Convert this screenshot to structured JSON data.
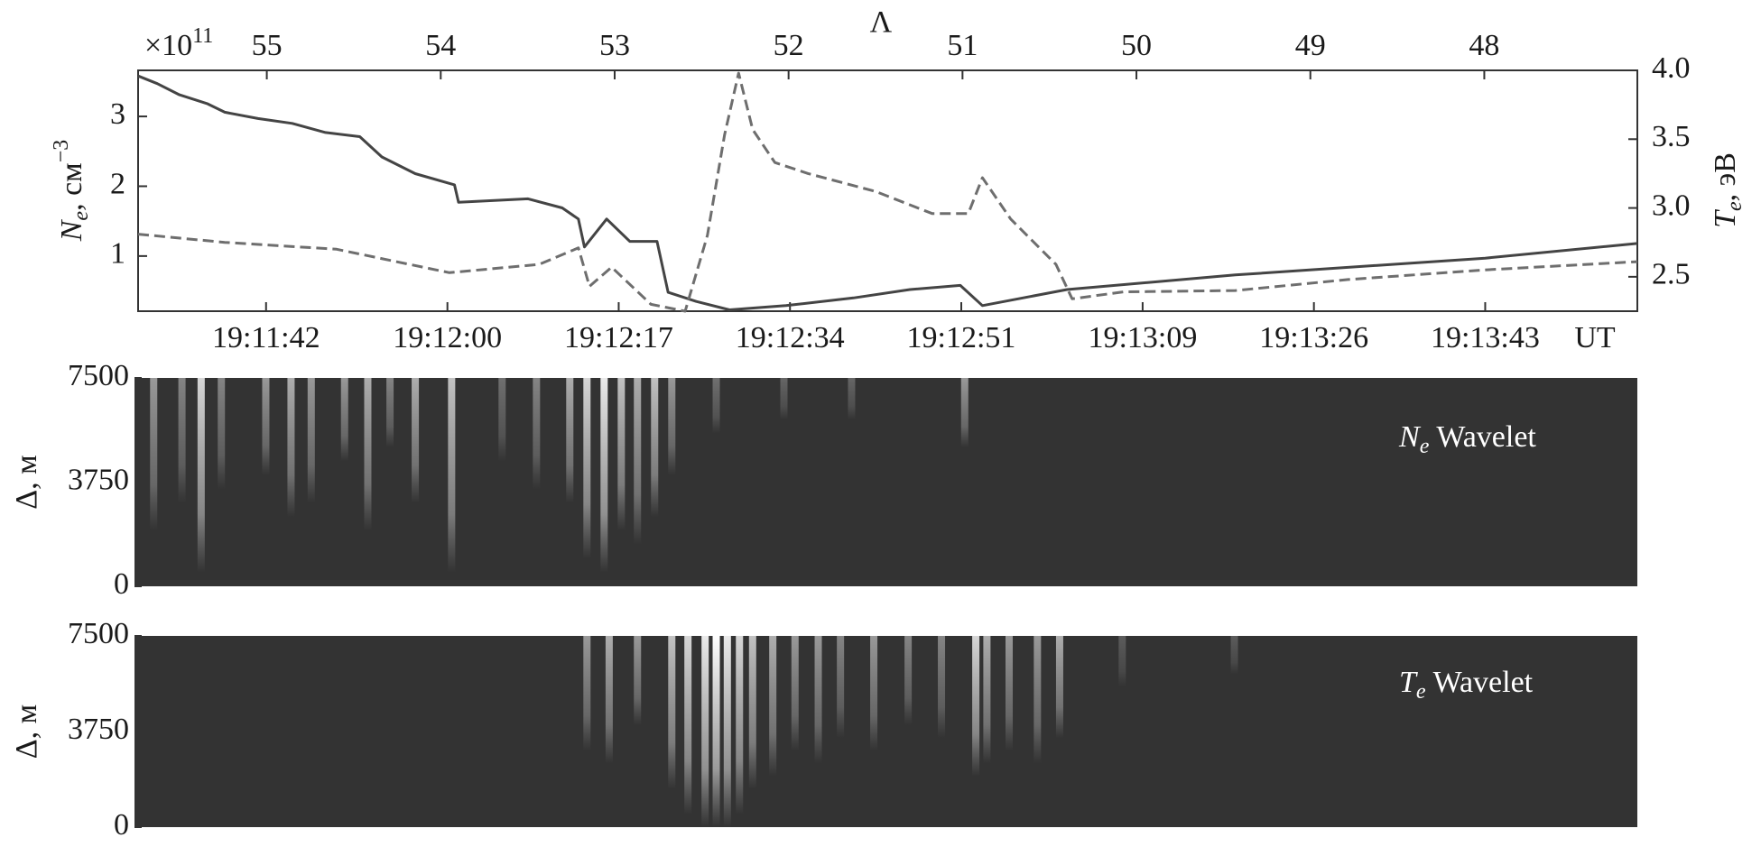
{
  "chart_data": [
    {
      "type": "line",
      "x_label": "UT",
      "x2_label": "Λ",
      "y_multiplier": {
        "base": "×10",
        "exponent": "11"
      },
      "y_label": {
        "symbol": "N",
        "sub": "e",
        "unit": ", см",
        "sup": "−3"
      },
      "y2_label": {
        "symbol": "T",
        "sub": "e",
        "unit": ", эВ"
      },
      "xlim": [
        68489.3,
        68638.1
      ],
      "xticks": [
        {
          "value": 68502,
          "label": "19:11:42"
        },
        {
          "value": 68520,
          "label": "19:12:00"
        },
        {
          "value": 68537,
          "label": "19:12:17"
        },
        {
          "value": 68554,
          "label": "19:12:34"
        },
        {
          "value": 68571,
          "label": "19:12:51"
        },
        {
          "value": 68589,
          "label": "19:13:09"
        },
        {
          "value": 68606,
          "label": "19:13:26"
        },
        {
          "value": 68623,
          "label": "19:13:43"
        }
      ],
      "x2lim": [
        55.74,
        47.12
      ],
      "x2ticks": [
        55,
        54,
        53,
        52,
        51,
        50,
        49,
        48
      ],
      "ylim": [
        0.21,
        3.66
      ],
      "yticks": [
        1,
        2,
        3
      ],
      "y2lim": [
        2.25,
        4.0
      ],
      "y2ticks": [
        2.5,
        {
          "value": 3,
          "label": "3.0"
        },
        3.5,
        {
          "value": 4,
          "label": "4.0"
        }
      ],
      "series": [
        {
          "color": "#444444",
          "style": "solid",
          "x": [
            68489.3,
            68491.2,
            68493.4,
            68496.2,
            68497.9,
            68501.2,
            68504.6,
            68507.9,
            68511.3,
            68513.5,
            68516.8,
            68520.7,
            68521.1,
            68528.0,
            68531.4,
            68533.0,
            68533.6,
            68535.8,
            68538.1,
            68540.8,
            68541.9,
            68544.7,
            68548.0,
            68553.6,
            68560.3,
            68565.9,
            68570.9,
            68573.1,
            68581.5,
            68598.2,
            68623.0,
            68638.1
          ],
          "values": [
            3.58,
            3.47,
            3.31,
            3.18,
            3.06,
            2.97,
            2.9,
            2.77,
            2.71,
            2.42,
            2.18,
            2.02,
            1.77,
            1.82,
            1.69,
            1.53,
            1.13,
            1.53,
            1.21,
            1.21,
            0.48,
            0.35,
            0.23,
            0.29,
            0.4,
            0.52,
            0.58,
            0.29,
            0.52,
            0.73,
            0.97,
            1.18
          ]
        },
        {
          "color": "#6e6e6e",
          "style": "dashed",
          "axis": "y2",
          "x": [
            68489.3,
            68497.9,
            68509.0,
            68520.2,
            68529.1,
            68533.0,
            68534.1,
            68536.3,
            68540.2,
            68543.6,
            68545.8,
            68547.5,
            68548.9,
            68550.3,
            68552.5,
            68555.8,
            68562.5,
            68568.1,
            68571.7,
            68573.1,
            68575.9,
            68580.4,
            68582.0,
            68587.1,
            68598.2,
            68609.4,
            68623.0,
            68638.1
          ],
          "values": [
            2.81,
            2.75,
            2.7,
            2.53,
            2.59,
            2.71,
            2.43,
            2.57,
            2.3,
            2.25,
            2.8,
            3.53,
            3.98,
            3.57,
            3.33,
            3.25,
            3.12,
            2.96,
            2.96,
            3.22,
            2.92,
            2.59,
            2.34,
            2.39,
            2.4,
            2.48,
            2.55,
            2.61
          ]
        }
      ]
    },
    {
      "type": "heatmap",
      "label": {
        "symbol": "N",
        "sub": "e",
        "text": "Wavelet"
      },
      "y_label": "Δ, м",
      "xlim": [
        68489.3,
        68638.1
      ],
      "ylim": [
        0,
        7500
      ],
      "yticks": [
        0,
        3750,
        7500
      ],
      "x": [
        68491.2,
        68494.0,
        68495.9,
        68497.9,
        68502.3,
        68504.8,
        68506.8,
        68510.1,
        68512.4,
        68514.6,
        68517.1,
        68520.7,
        68525.7,
        68529.1,
        68532.4,
        68534.1,
        68535.8,
        68537.5,
        68539.1,
        68540.8,
        68542.5,
        68546.9,
        68553.6,
        68560.3,
        68571.5
      ],
      "values": [
        2000,
        3000,
        500,
        3500,
        4000,
        2500,
        3000,
        4500,
        2000,
        5000,
        3000,
        500,
        4500,
        3500,
        3000,
        1000,
        500,
        2000,
        1500,
        2500,
        4000,
        5500,
        6000,
        6000,
        5000
      ],
      "intensity": [
        0.5,
        0.4,
        0.8,
        0.4,
        0.5,
        0.6,
        0.5,
        0.5,
        0.6,
        0.4,
        0.6,
        0.7,
        0.3,
        0.4,
        0.6,
        0.8,
        0.9,
        0.7,
        0.6,
        0.7,
        0.5,
        0.3,
        0.25,
        0.25,
        0.5
      ]
    },
    {
      "type": "heatmap",
      "label": {
        "symbol": "T",
        "sub": "e",
        "text": "Wavelet"
      },
      "y_label": "Δ, м",
      "xlim": [
        68489.3,
        68638.1
      ],
      "ylim": [
        0,
        7500
      ],
      "yticks": [
        0,
        3750,
        7500
      ],
      "x": [
        68534.1,
        68536.3,
        68539.1,
        68542.5,
        68544.1,
        68545.8,
        68546.9,
        68548.0,
        68549.2,
        68550.5,
        68552.5,
        68554.7,
        68557.0,
        68559.2,
        68562.5,
        68565.9,
        68569.2,
        68572.6,
        68573.7,
        68575.9,
        68578.7,
        68580.9,
        68587.1,
        68598.2
      ],
      "values": [
        3000,
        2500,
        4000,
        1500,
        500,
        0,
        0,
        0,
        500,
        1500,
        2000,
        3000,
        2500,
        3500,
        3000,
        4000,
        3500,
        2000,
        2500,
        3000,
        2500,
        3500,
        5500,
        6000
      ],
      "intensity": [
        0.5,
        0.6,
        0.5,
        0.7,
        0.8,
        0.9,
        1,
        0.9,
        0.8,
        0.7,
        0.6,
        0.5,
        0.5,
        0.4,
        0.5,
        0.4,
        0.4,
        0.8,
        0.6,
        0.5,
        0.5,
        0.6,
        0.2,
        0.2
      ]
    }
  ]
}
